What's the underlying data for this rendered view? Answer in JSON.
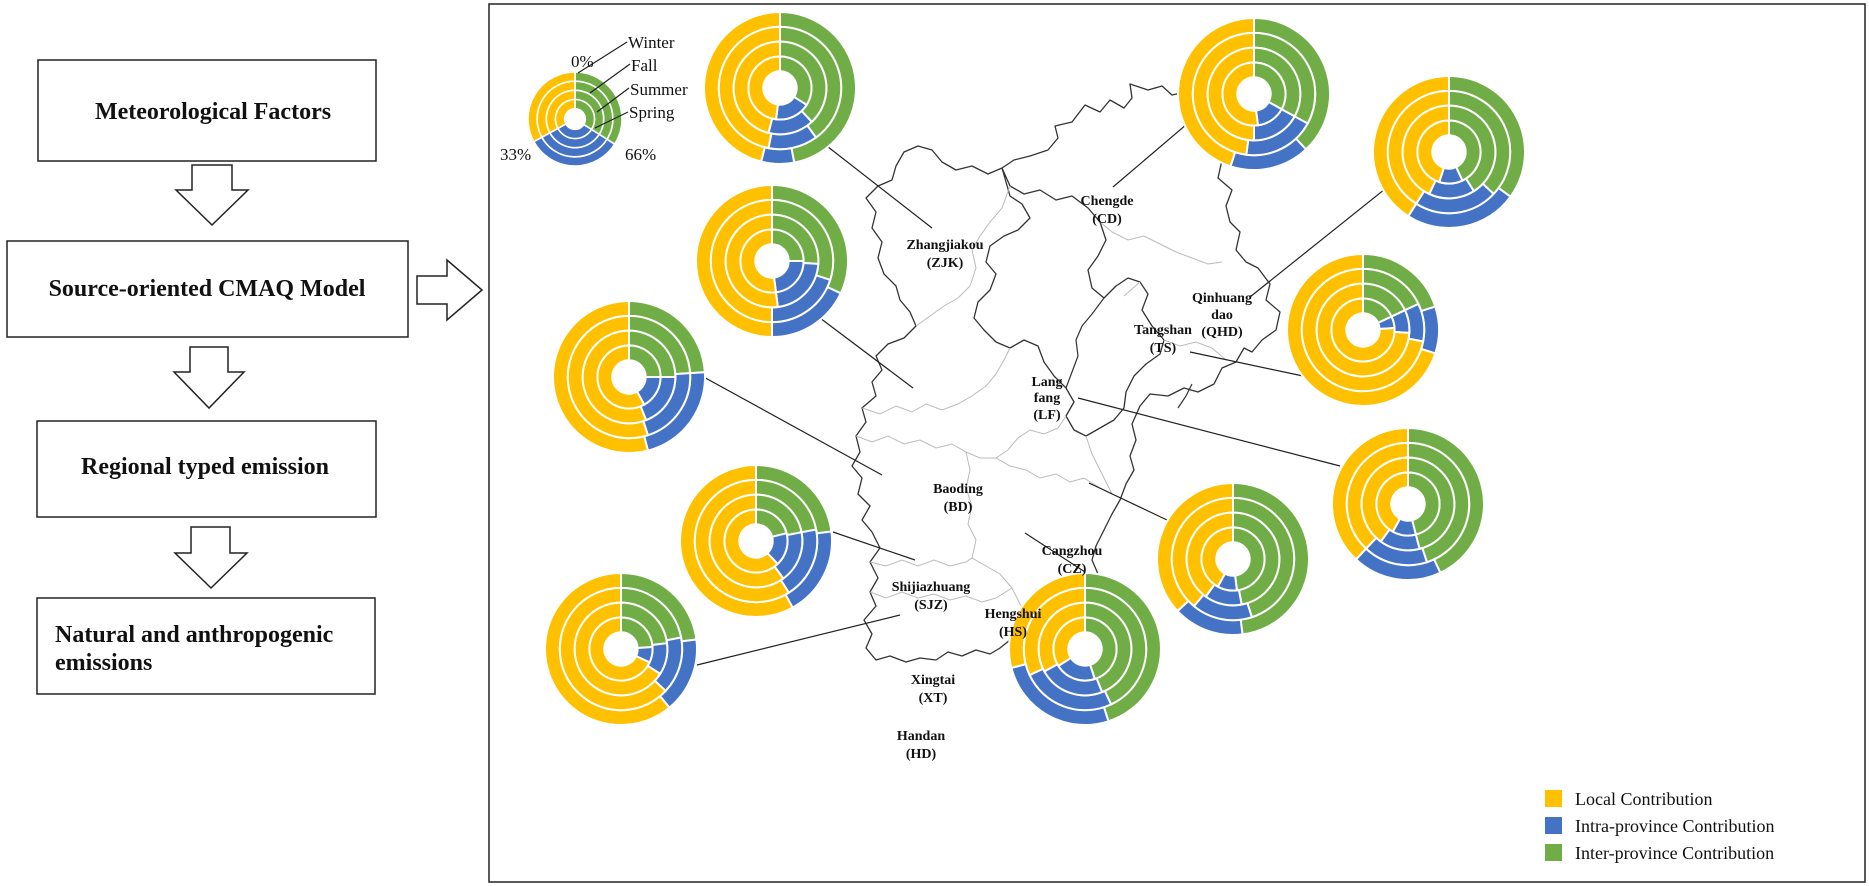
{
  "colors": {
    "local": "#FFC000",
    "intra": "#4472C4",
    "inter": "#70AD47",
    "border": "#222222",
    "province_line": "#BBBBBB"
  },
  "flow": {
    "boxes": [
      {
        "label": "Meteorological  Factors",
        "label2": ""
      },
      {
        "label": "Source-oriented CMAQ  Model",
        "label2": ""
      },
      {
        "label": "Regional typed emission",
        "label2": ""
      },
      {
        "label": "Natural and anthropogenic",
        "label2": "emissions"
      }
    ]
  },
  "key": {
    "seasons": [
      "Winter",
      "Fall",
      "Summer",
      "Spring"
    ],
    "pct_top": "0%",
    "pct_left": "33%",
    "pct_right": "66%"
  },
  "legend": {
    "local": "Local Contribution",
    "intra": "Intra-province Contribution",
    "inter": "Inter-province Contribution"
  },
  "chart_data": {
    "type": "donut",
    "ring_order_outer_to_inner": [
      "Winter",
      "Fall",
      "Summer",
      "Spring"
    ],
    "series_names": [
      "Local Contribution",
      "Intra-province Contribution",
      "Inter-province Contribution"
    ],
    "key": [
      [
        0.33,
        0.33,
        0.34
      ],
      [
        0.33,
        0.33,
        0.34
      ],
      [
        0.33,
        0.33,
        0.34
      ],
      [
        0.33,
        0.33,
        0.34
      ]
    ],
    "cities": [
      {
        "name": "Zhangjiakou",
        "abbr": "(ZJK)",
        "rings": [
          [
            0.46,
            0.07,
            0.47
          ],
          [
            0.47,
            0.13,
            0.4
          ],
          [
            0.46,
            0.16,
            0.38
          ],
          [
            0.48,
            0.18,
            0.34
          ]
        ]
      },
      {
        "name": "Chengde",
        "abbr": "(CD)",
        "rings": [
          [
            0.45,
            0.17,
            0.38
          ],
          [
            0.48,
            0.19,
            0.33
          ],
          [
            0.5,
            0.17,
            0.33
          ],
          [
            0.52,
            0.15,
            0.33
          ]
        ]
      },
      {
        "name": "Qinhuang",
        "name2": "dao",
        "abbr": "(QHD)",
        "rings": [
          [
            0.41,
            0.24,
            0.35
          ],
          [
            0.41,
            0.22,
            0.37
          ],
          [
            0.43,
            0.16,
            0.41
          ],
          [
            0.45,
            0.12,
            0.43
          ]
        ]
      },
      {
        "name": "Tangshan",
        "abbr": "(TS)",
        "rings": [
          [
            0.7,
            0.1,
            0.2
          ],
          [
            0.72,
            0.1,
            0.18
          ],
          [
            0.74,
            0.08,
            0.18
          ],
          [
            0.76,
            0.06,
            0.18
          ]
        ]
      },
      {
        "name": "Lang",
        "name2": "fang",
        "abbr": "(LF)",
        "rings": [
          [
            0.38,
            0.19,
            0.43
          ],
          [
            0.38,
            0.17,
            0.45
          ],
          [
            0.4,
            0.14,
            0.46
          ],
          [
            0.42,
            0.12,
            0.46
          ]
        ]
      },
      {
        "name": "Baoding",
        "abbr": "(BD)",
        "rings": [
          [
            0.5,
            0.18,
            0.32
          ],
          [
            0.5,
            0.2,
            0.3
          ],
          [
            0.52,
            0.22,
            0.26
          ],
          [
            0.52,
            0.23,
            0.25
          ]
        ]
      },
      {
        "name": "Shijiazhuang",
        "abbr": "(SJZ)",
        "rings": [
          [
            0.54,
            0.22,
            0.24
          ],
          [
            0.55,
            0.21,
            0.24
          ],
          [
            0.56,
            0.19,
            0.25
          ],
          [
            0.58,
            0.17,
            0.25
          ]
        ]
      },
      {
        "name": "Xingtai",
        "abbr": "(XT)",
        "rings": [
          [
            0.58,
            0.19,
            0.23
          ],
          [
            0.59,
            0.19,
            0.22
          ],
          [
            0.6,
            0.18,
            0.22
          ],
          [
            0.62,
            0.17,
            0.21
          ]
        ]
      },
      {
        "name": "Handan",
        "abbr": "(HD)",
        "rings": [
          [
            0.61,
            0.16,
            0.23
          ],
          [
            0.63,
            0.15,
            0.22
          ],
          [
            0.66,
            0.11,
            0.23
          ],
          [
            0.68,
            0.08,
            0.24
          ]
        ]
      },
      {
        "name": "Hengshui",
        "abbr": "(HS)",
        "rings": [
          [
            0.29,
            0.26,
            0.45
          ],
          [
            0.32,
            0.25,
            0.43
          ],
          [
            0.33,
            0.23,
            0.44
          ],
          [
            0.34,
            0.21,
            0.45
          ]
        ]
      },
      {
        "name": "Cangzhou",
        "abbr": "(CZ)",
        "rings": [
          [
            0.37,
            0.15,
            0.48
          ],
          [
            0.39,
            0.16,
            0.45
          ],
          [
            0.4,
            0.13,
            0.47
          ],
          [
            0.42,
            0.1,
            0.48
          ]
        ]
      }
    ]
  }
}
